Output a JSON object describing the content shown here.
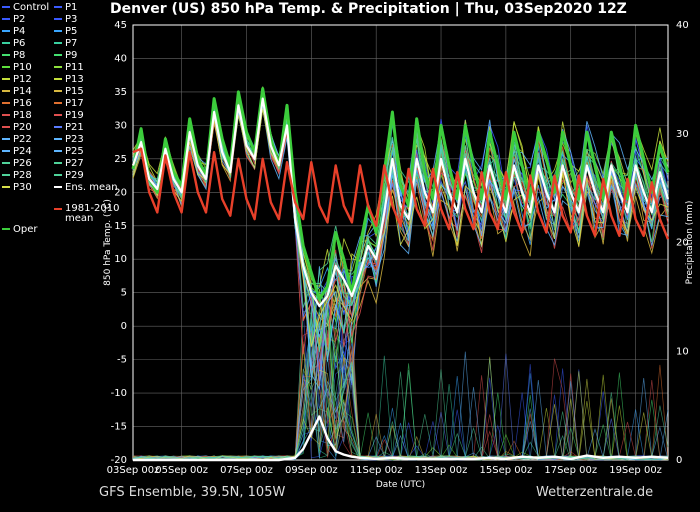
{
  "title": "Denver  (US)  850 hPa Temp. & Precipitation | Thu, 03Sep2020 12Z",
  "footer": {
    "left": "GFS Ensemble, 39.5N, 105W",
    "right": "Wetterzentrale.de"
  },
  "legend": [
    {
      "label": "Control",
      "color": "#3b5bff"
    },
    {
      "label": "P1",
      "color": "#3b5bff"
    },
    {
      "label": "P2",
      "color": "#3b5bff"
    },
    {
      "label": "P3",
      "color": "#3b5bff"
    },
    {
      "label": "P4",
      "color": "#3aa6ff"
    },
    {
      "label": "P5",
      "color": "#3aa6ff"
    },
    {
      "label": "P6",
      "color": "#39d0a0"
    },
    {
      "label": "P7",
      "color": "#39d0a0"
    },
    {
      "label": "P8",
      "color": "#44e070"
    },
    {
      "label": "P9",
      "color": "#44e070"
    },
    {
      "label": "P10",
      "color": "#5ee03c"
    },
    {
      "label": "P11",
      "color": "#8ee03c"
    },
    {
      "label": "P12",
      "color": "#c6e03c"
    },
    {
      "label": "P13",
      "color": "#c6e03c"
    },
    {
      "label": "P14",
      "color": "#d8b840"
    },
    {
      "label": "P15",
      "color": "#d8b840"
    },
    {
      "label": "P16",
      "color": "#e07030"
    },
    {
      "label": "P17",
      "color": "#e07030"
    },
    {
      "label": "P18",
      "color": "#e05050"
    },
    {
      "label": "P19",
      "color": "#e05050"
    },
    {
      "label": "P20",
      "color": "#e05050"
    },
    {
      "label": "P21",
      "color": "#5b7cff"
    },
    {
      "label": "P22",
      "color": "#5fb6ff"
    },
    {
      "label": "P23",
      "color": "#5fb6ff"
    },
    {
      "label": "P24",
      "color": "#5fb6ff"
    },
    {
      "label": "P25",
      "color": "#5fb6ff"
    },
    {
      "label": "P26",
      "color": "#4fd39a"
    },
    {
      "label": "P27",
      "color": "#4fd39a"
    },
    {
      "label": "P28",
      "color": "#4fd39a"
    },
    {
      "label": "P29",
      "color": "#4fd39a"
    },
    {
      "label": "P30",
      "color": "#d7e04a"
    },
    {
      "label": "Ens. mean",
      "color": "#ffffff"
    },
    {
      "label": "1981-2010 mean",
      "color": "#e8402a"
    },
    {
      "label": "Oper",
      "color": "#3ccd3c"
    }
  ],
  "chart_data": {
    "type": "line",
    "title": "Denver  (US)  850 hPa Temp. & Precipitation | Thu, 03Sep2020 12Z",
    "xlabel": "Date (UTC)",
    "ylabel": "850 hPa Temp. (°C)",
    "y2label": "Precipitation (mm)",
    "x_ticks": [
      "03Sep 00z",
      "05Sep 00z",
      "07Sep 00z",
      "09Sep 00z",
      "11Sep 00z",
      "13Sep 00z",
      "15Sep 00z",
      "17Sep 00z",
      "19Sep 00z"
    ],
    "ylim": [
      -20,
      45
    ],
    "y_ticks": [
      -20,
      -15,
      -10,
      -5,
      0,
      5,
      10,
      15,
      20,
      25,
      30,
      35,
      40,
      45
    ],
    "y2lim": [
      0,
      40
    ],
    "y2_ticks": [
      0,
      10,
      20,
      30,
      40
    ],
    "grid": true,
    "x_start_day": 3.5,
    "x_end_day": 20.0,
    "colors": {
      "grid": "#666666",
      "oper": "#3ccd3c",
      "ens_mean": "#ffffff",
      "clim": "#e8402a"
    },
    "series": [
      {
        "name": "Oper",
        "axis": "temp",
        "x": [
          3.5,
          3.75,
          4.0,
          4.25,
          4.5,
          4.75,
          5.0,
          5.25,
          5.5,
          5.75,
          6.0,
          6.25,
          6.5,
          6.75,
          7.0,
          7.25,
          7.5,
          7.75,
          8.0,
          8.25,
          8.5,
          8.75,
          9.0,
          9.25,
          9.5,
          9.75,
          10.0,
          10.25,
          10.5,
          10.75,
          11.0,
          11.25,
          11.5,
          11.75,
          12.0,
          12.25,
          12.5,
          12.75,
          13.0,
          13.25,
          13.5,
          13.75,
          14.0,
          14.25,
          14.5,
          14.75,
          15.0,
          15.25,
          15.5,
          15.75,
          16.0,
          16.25,
          16.5,
          16.75,
          17.0,
          17.25,
          17.5,
          17.75,
          18.0,
          18.25,
          18.5,
          18.75,
          19.0,
          19.25,
          19.5,
          19.75,
          20.0
        ],
        "y": [
          23.5,
          29.5,
          22.0,
          20.0,
          28.0,
          23.0,
          21.0,
          31.0,
          25.0,
          22.5,
          34.0,
          28.0,
          24.0,
          35.0,
          29.0,
          26.0,
          35.5,
          28.0,
          24.0,
          33.0,
          20.0,
          12.0,
          8.0,
          4.0,
          6.0,
          14.0,
          10.0,
          5.0,
          12.0,
          18.0,
          14.0,
          23.0,
          32.0,
          21.0,
          18.0,
          31.0,
          23.0,
          19.0,
          30.0,
          24.0,
          19.0,
          30.0,
          24.0,
          19.0,
          29.0,
          24.0,
          19.0,
          29.0,
          24.0,
          19.0,
          29.0,
          25.0,
          20.0,
          29.0,
          24.0,
          19.0,
          29.0,
          24.0,
          19.0,
          29.0,
          24.0,
          19.0,
          30.0,
          25.0,
          20.0,
          27.0,
          23.0
        ]
      },
      {
        "name": "Ens. mean",
        "axis": "temp",
        "x": [
          3.5,
          3.75,
          4.0,
          4.25,
          4.5,
          4.75,
          5.0,
          5.25,
          5.5,
          5.75,
          6.0,
          6.25,
          6.5,
          6.75,
          7.0,
          7.25,
          7.5,
          7.75,
          8.0,
          8.25,
          8.5,
          8.75,
          9.0,
          9.25,
          9.5,
          9.75,
          10.0,
          10.25,
          10.5,
          10.75,
          11.0,
          11.25,
          11.5,
          11.75,
          12.0,
          12.25,
          12.5,
          12.75,
          13.0,
          13.25,
          13.5,
          13.75,
          14.0,
          14.25,
          14.5,
          14.75,
          15.0,
          15.25,
          15.5,
          15.75,
          16.0,
          16.25,
          16.5,
          16.75,
          17.0,
          17.25,
          17.5,
          17.75,
          18.0,
          18.25,
          18.5,
          18.75,
          19.0,
          19.25,
          19.5,
          19.75,
          20.0
        ],
        "y": [
          24.0,
          27.5,
          22.0,
          20.5,
          26.5,
          22.0,
          20.0,
          29.0,
          24.0,
          22.0,
          32.0,
          26.0,
          23.0,
          33.0,
          27.0,
          25.0,
          34.0,
          27.0,
          24.0,
          30.0,
          16.0,
          9.0,
          5.0,
          3.0,
          4.5,
          9.0,
          7.0,
          4.5,
          8.0,
          12.0,
          10.0,
          17.0,
          25.0,
          18.0,
          16.0,
          25.0,
          20.0,
          17.0,
          25.0,
          20.0,
          17.0,
          25.0,
          20.0,
          17.0,
          24.0,
          20.0,
          17.0,
          24.0,
          20.0,
          17.0,
          24.0,
          20.0,
          17.0,
          24.0,
          20.0,
          17.0,
          24.0,
          20.0,
          17.0,
          24.0,
          20.0,
          17.0,
          24.0,
          20.0,
          17.0,
          23.0,
          19.0
        ]
      },
      {
        "name": "1981-2010 mean",
        "axis": "temp",
        "x": [
          3.5,
          3.75,
          4.0,
          4.25,
          4.5,
          4.75,
          5.0,
          5.25,
          5.5,
          5.75,
          6.0,
          6.25,
          6.5,
          6.75,
          7.0,
          7.25,
          7.5,
          7.75,
          8.0,
          8.25,
          8.5,
          8.75,
          9.0,
          9.25,
          9.5,
          9.75,
          10.0,
          10.25,
          10.5,
          10.75,
          11.0,
          11.25,
          11.5,
          11.75,
          12.0,
          12.25,
          12.5,
          12.75,
          13.0,
          13.25,
          13.5,
          13.75,
          14.0,
          14.25,
          14.5,
          14.75,
          15.0,
          15.25,
          15.5,
          15.75,
          16.0,
          16.25,
          16.5,
          16.75,
          17.0,
          17.25,
          17.5,
          17.75,
          18.0,
          18.25,
          18.5,
          18.75,
          19.0,
          19.25,
          19.5,
          19.75,
          20.0
        ],
        "y": [
          26.0,
          26.5,
          20.0,
          17.0,
          25.5,
          20.0,
          17.0,
          26.0,
          20.0,
          17.0,
          26.0,
          19.0,
          16.5,
          25.0,
          19.0,
          16.0,
          25.0,
          18.5,
          16.0,
          24.5,
          18.5,
          16.0,
          24.5,
          18.0,
          15.5,
          24.0,
          18.0,
          15.5,
          24.0,
          18.0,
          15.0,
          24.0,
          18.0,
          15.0,
          23.5,
          17.5,
          15.0,
          23.5,
          17.5,
          14.5,
          23.0,
          17.5,
          14.5,
          23.0,
          17.0,
          14.5,
          23.0,
          17.0,
          14.0,
          22.5,
          17.0,
          14.0,
          22.5,
          16.5,
          14.0,
          22.5,
          16.5,
          13.5,
          22.0,
          16.5,
          13.5,
          22.0,
          16.0,
          13.5,
          21.5,
          16.0,
          13.0
        ]
      },
      {
        "name": "Ens. mean precipitation",
        "axis": "precip",
        "x": [
          3.5,
          4.0,
          5.0,
          6.0,
          7.0,
          8.0,
          8.5,
          8.75,
          9.0,
          9.25,
          9.5,
          9.75,
          10.0,
          10.25,
          10.5,
          11.0,
          11.5,
          12.0,
          13.0,
          14.0,
          14.5,
          15.0,
          15.5,
          16.0,
          16.5,
          17.0,
          17.5,
          18.0,
          18.5,
          19.0,
          19.5,
          20.0
        ],
        "y": [
          0,
          0,
          0,
          0,
          0,
          0,
          0.2,
          1.0,
          2.5,
          4.0,
          2.0,
          0.8,
          0.5,
          0.3,
          0.2,
          0.1,
          0.2,
          0.1,
          0.1,
          0.1,
          0.2,
          0.1,
          0.3,
          0.2,
          0.3,
          0.1,
          0.4,
          0.2,
          0.3,
          0.2,
          0.3,
          0.2
        ]
      }
    ],
    "members": {
      "note": "individual ensemble member traces (P1–P30) shown as thin colored lines",
      "count": 31
    }
  }
}
